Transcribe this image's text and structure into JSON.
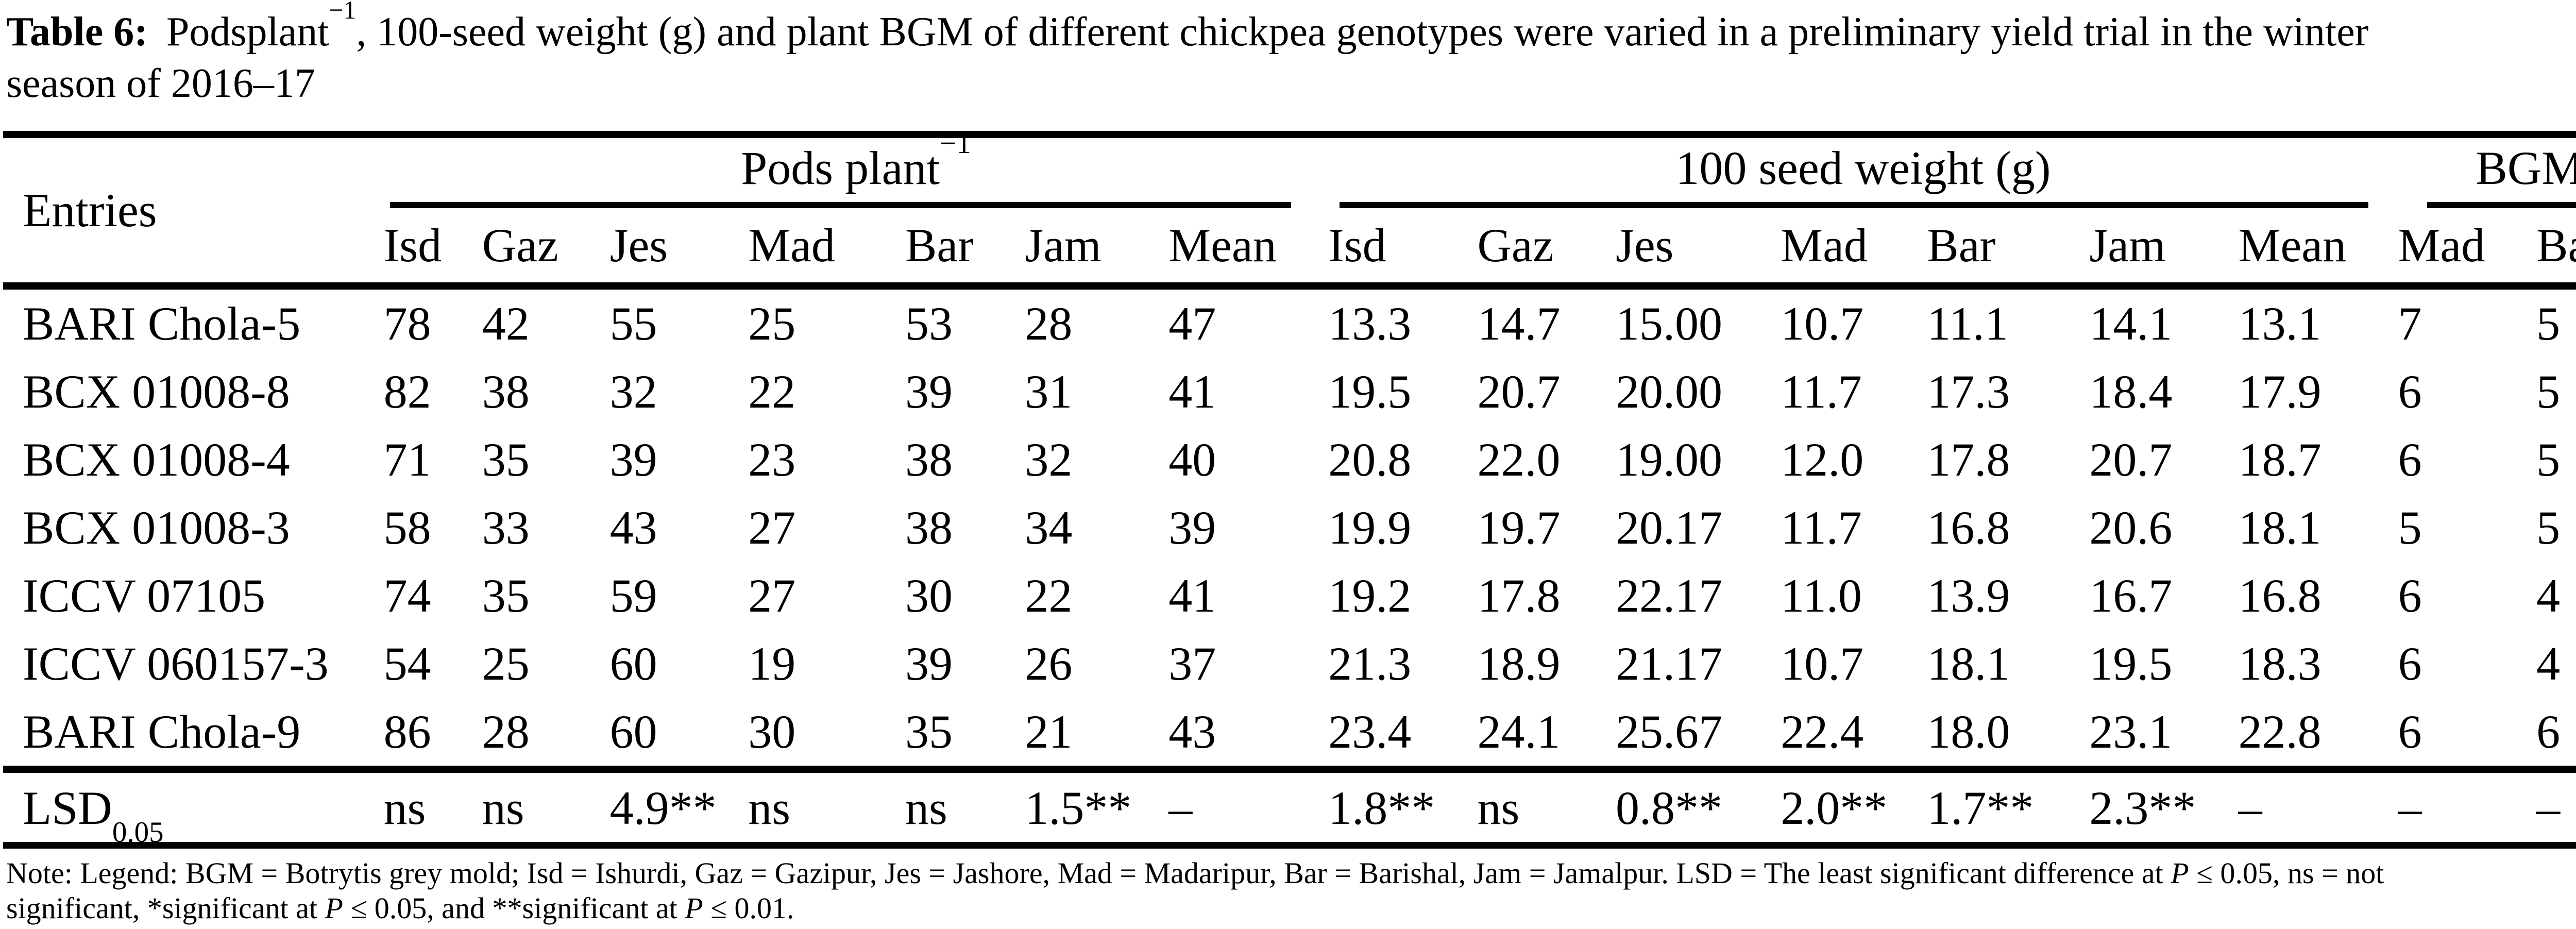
{
  "colors": {
    "text": "#000000",
    "background": "#ffffff",
    "rule": "#000000"
  },
  "title": {
    "label": "Table 6:",
    "before_sup": "Podsplant",
    "sup": "−1",
    "line1_rest": ", 100-seed weight (g) and plant BGM of different chickpea genotypes were varied in a preliminary yield trial in the winter",
    "line2": "season of 2016–17"
  },
  "table": {
    "col1_header": "Entries",
    "groups": [
      {
        "label": "Pods plant",
        "sup": "−1",
        "cols": [
          "Isd",
          "Gaz",
          "Jes",
          "Mad",
          "Bar",
          "Jam",
          "Mean"
        ]
      },
      {
        "label": "100 seed weight (g)",
        "cols": [
          "Isd",
          "Gaz",
          "Jes",
          "Mad",
          "Bar",
          "Jam",
          "Mean"
        ]
      },
      {
        "label": "BGM",
        "cols": [
          "Mad",
          "Bar"
        ]
      }
    ],
    "rows": [
      {
        "entry": "BARI Chola-5",
        "pods": [
          "78",
          "42",
          "55",
          "25",
          "53",
          "28",
          "47"
        ],
        "seed": [
          "13.3",
          "14.7",
          "15.00",
          "10.7",
          "11.1",
          "14.1",
          "13.1"
        ],
        "bgm": [
          "7",
          "5"
        ]
      },
      {
        "entry": "BCX 01008-8",
        "pods": [
          "82",
          "38",
          "32",
          "22",
          "39",
          "31",
          "41"
        ],
        "seed": [
          "19.5",
          "20.7",
          "20.00",
          "11.7",
          "17.3",
          "18.4",
          "17.9"
        ],
        "bgm": [
          "6",
          "5"
        ]
      },
      {
        "entry": "BCX 01008-4",
        "pods": [
          "71",
          "35",
          "39",
          "23",
          "38",
          "32",
          "40"
        ],
        "seed": [
          "20.8",
          "22.0",
          "19.00",
          "12.0",
          "17.8",
          "20.7",
          "18.7"
        ],
        "bgm": [
          "6",
          "5"
        ]
      },
      {
        "entry": "BCX 01008-3",
        "pods": [
          "58",
          "33",
          "43",
          "27",
          "38",
          "34",
          "39"
        ],
        "seed": [
          "19.9",
          "19.7",
          "20.17",
          "11.7",
          "16.8",
          "20.6",
          "18.1"
        ],
        "bgm": [
          "5",
          "5"
        ]
      },
      {
        "entry": "ICCV 07105",
        "pods": [
          "74",
          "35",
          "59",
          "27",
          "30",
          "22",
          "41"
        ],
        "seed": [
          "19.2",
          "17.8",
          "22.17",
          "11.0",
          "13.9",
          "16.7",
          "16.8"
        ],
        "bgm": [
          "6",
          "4"
        ]
      },
      {
        "entry": "ICCV 060157-3",
        "pods": [
          "54",
          "25",
          "60",
          "19",
          "39",
          "26",
          "37"
        ],
        "seed": [
          "21.3",
          "18.9",
          "21.17",
          "10.7",
          "18.1",
          "19.5",
          "18.3"
        ],
        "bgm": [
          "6",
          "4"
        ]
      },
      {
        "entry": "BARI Chola-9",
        "pods": [
          "86",
          "28",
          "60",
          "30",
          "35",
          "21",
          "43"
        ],
        "seed": [
          "23.4",
          "24.1",
          "25.67",
          "22.4",
          "18.0",
          "23.1",
          "22.8"
        ],
        "bgm": [
          "6",
          "6"
        ]
      }
    ],
    "lsd_row": {
      "label": "LSD",
      "sub": "0.05",
      "pods": [
        "ns",
        "ns",
        "4.9**",
        "ns",
        "ns",
        "1.5**",
        "–"
      ],
      "seed": [
        "1.8**",
        "ns",
        "0.8**",
        "2.0**",
        "1.7**",
        "2.3**",
        "–"
      ],
      "bgm": [
        "–",
        "–"
      ]
    }
  },
  "footnote": {
    "line1_a": "Note: Legend: BGM = Botrytis grey mold; Isd = Ishurdi, Gaz = Gazipur, Jes = Jashore, Mad = Madaripur, Bar = Barishal, Jam = Jamalpur. LSD = The least significant difference at ",
    "line1_p": "P",
    "line1_b": " ≤ 0.05, ns = not",
    "line2_a": "significant, *significant at ",
    "line2_p1": "P",
    "line2_b": " ≤ 0.05, and **significant at ",
    "line2_p2": "P",
    "line2_c": " ≤ 0.01."
  }
}
